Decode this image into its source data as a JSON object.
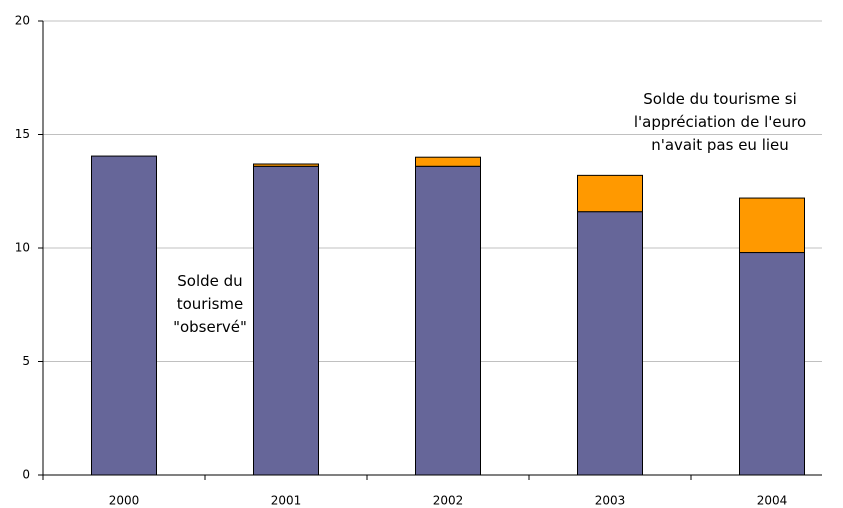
{
  "chart_data": {
    "type": "stacked-bar",
    "categories": [
      "2000",
      "2001",
      "2002",
      "2003",
      "2004"
    ],
    "series": [
      {
        "name": "Solde du tourisme \"observé\"",
        "color": "#666699",
        "values": [
          14.05,
          13.6,
          13.6,
          11.6,
          9.8
        ]
      },
      {
        "name": "Solde du tourisme si l'appréciation de l'euro n'avait pas eu lieu",
        "color": "#ff9900",
        "values": [
          0,
          0.1,
          0.4,
          1.6,
          2.4
        ]
      }
    ],
    "ylim": [
      0,
      20
    ],
    "yticks": [
      0,
      5,
      10,
      15,
      20
    ],
    "grid": true
  }
}
